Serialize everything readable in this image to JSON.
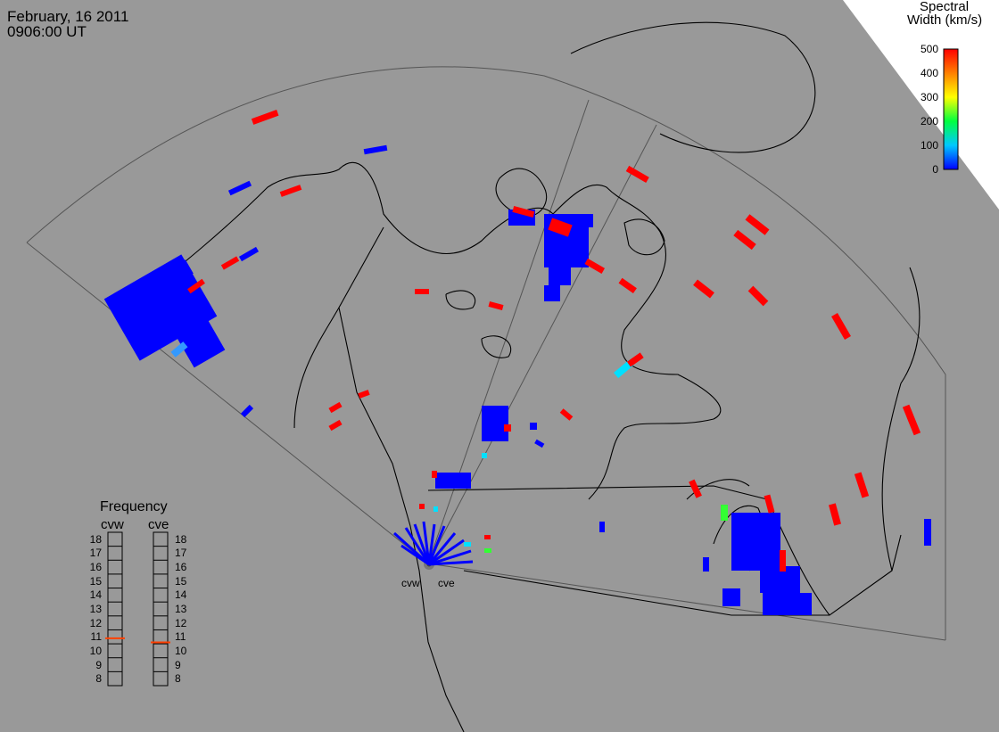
{
  "header": {
    "date": "February, 16 2011",
    "time": "0906:00 UT"
  },
  "colorbar": {
    "title_line1": "Spectral",
    "title_line2": "Width (km/s)",
    "ticks": [
      "500",
      "400",
      "300",
      "200",
      "100",
      "0"
    ],
    "colors": [
      "#0000ff",
      "#00c8ff",
      "#00ff40",
      "#ffff00",
      "#ff8000",
      "#ff0000"
    ]
  },
  "radars": {
    "west_label": "cvw",
    "east_label": "cve"
  },
  "frequency_panel": {
    "title": "Frequency",
    "left_label": "cvw",
    "right_label": "cve",
    "scale": [
      "18",
      "17",
      "16",
      "15",
      "14",
      "13",
      "12",
      "11",
      "10",
      "9",
      "8"
    ],
    "cvw_value_mhz": 10.9,
    "cve_value_mhz": 10.6,
    "marker_color": "#ff4000"
  },
  "map": {
    "background": "#999999",
    "coastline_color": "#000000",
    "fov_line_color": "#555555",
    "scatter_color_low": "#0000ff",
    "scatter_color_high": "#ff0000"
  }
}
